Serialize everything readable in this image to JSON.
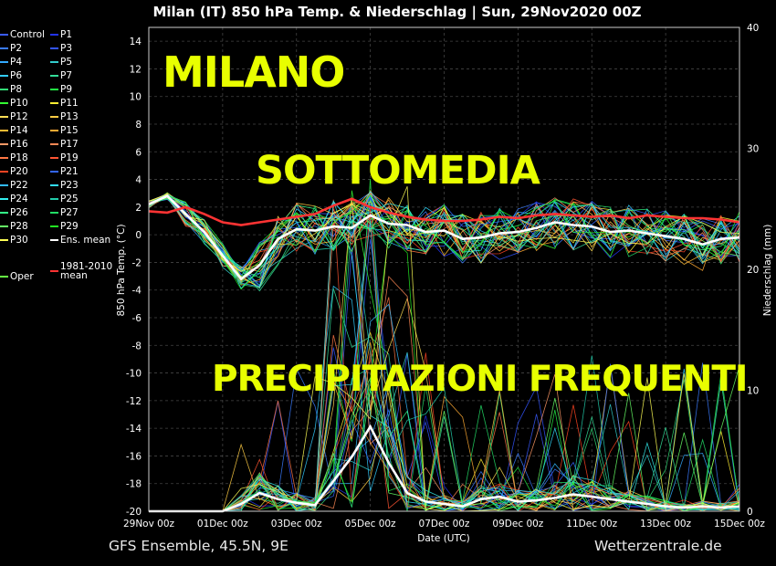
{
  "title": "Milan  (IT)  850 hPa Temp. & Niederschlag | Sun, 29Nov2020 00Z",
  "footer": {
    "left": "GFS Ensemble, 45.5N, 9E",
    "right": "Wetterzentrale.de"
  },
  "overlay": {
    "line1": "MILANO",
    "line2": "SOTTOMEDIA",
    "line3": "PRECIPITAZIONI FREQUENTI"
  },
  "legend": [
    {
      "label": "Control",
      "color": "#3a5bff"
    },
    {
      "label": "P1",
      "color": "#2233ee"
    },
    {
      "label": "P2",
      "color": "#3a7bff"
    },
    {
      "label": "P3",
      "color": "#3355ff"
    },
    {
      "label": "P4",
      "color": "#33aaff"
    },
    {
      "label": "P5",
      "color": "#33cccc"
    },
    {
      "label": "P6",
      "color": "#33ccff"
    },
    {
      "label": "P7",
      "color": "#33dd99"
    },
    {
      "label": "P8",
      "color": "#33dd77"
    },
    {
      "label": "P9",
      "color": "#22ee44"
    },
    {
      "label": "P10",
      "color": "#33ff33"
    },
    {
      "label": "P11",
      "color": "#ffee33"
    },
    {
      "label": "P12",
      "color": "#ffdd55"
    },
    {
      "label": "P13",
      "color": "#ffcc44"
    },
    {
      "label": "P14",
      "color": "#ffbb33"
    },
    {
      "label": "P15",
      "color": "#ffaa33"
    },
    {
      "label": "P16",
      "color": "#ff9966"
    },
    {
      "label": "P17",
      "color": "#ff8855"
    },
    {
      "label": "P18",
      "color": "#ff7744"
    },
    {
      "label": "P19",
      "color": "#ff5533"
    },
    {
      "label": "P20",
      "color": "#ff4422"
    },
    {
      "label": "P21",
      "color": "#3366ff"
    },
    {
      "label": "P22",
      "color": "#33bbff"
    },
    {
      "label": "P23",
      "color": "#33ddff"
    },
    {
      "label": "P24",
      "color": "#33eeee"
    },
    {
      "label": "P25",
      "color": "#22ccaa"
    },
    {
      "label": "P26",
      "color": "#33ff88"
    },
    {
      "label": "P27",
      "color": "#22dd66"
    },
    {
      "label": "P28",
      "color": "#66ff66"
    },
    {
      "label": "P29",
      "color": "#22ee22"
    },
    {
      "label": "P30",
      "color": "#ffff55"
    },
    {
      "label": "Ens. mean",
      "color": "#ffffff"
    },
    {
      "label": "Oper",
      "color": "#66ff44"
    },
    {
      "label": "1981-2010\nmean",
      "color": "#ff3333"
    }
  ],
  "chart_data": {
    "type": "line",
    "title": "Milan  (IT)  850 hPa Temp. & Niederschlag | Sun, 29Nov2020 00Z",
    "xlabel": "Date (UTC)",
    "ylabel": "850 hPa Temp. (°C)",
    "y2label": "Niederschlag (mm)",
    "ylim": [
      -20,
      15
    ],
    "y2lim": [
      0,
      40
    ],
    "yticks": [
      -20,
      -18,
      -16,
      -14,
      -12,
      -10,
      -8,
      -6,
      -4,
      -2,
      0,
      2,
      4,
      6,
      8,
      10,
      12,
      14
    ],
    "y2ticks": [
      0,
      10,
      20,
      30,
      40
    ],
    "xticks": [
      "29Nov 00z",
      "01Dec 00z",
      "03Dec 00z",
      "05Dec 00z",
      "07Dec 00z",
      "09Dec 00z",
      "11Dec 00z",
      "13Dec 00z",
      "15Dec 00z"
    ],
    "x_days": [
      0,
      16
    ],
    "grid": true,
    "series": [
      {
        "name": "Ens. mean",
        "axis": "temp",
        "color": "#ffffff",
        "x": [
          0,
          0.5,
          1,
          1.5,
          2,
          2.5,
          3,
          3.5,
          4,
          4.5,
          5,
          5.5,
          6,
          6.5,
          7,
          7.5,
          8,
          8.5,
          9,
          9.5,
          10,
          10.5,
          11,
          11.5,
          12,
          12.5,
          13,
          13.5,
          14,
          14.5,
          15,
          15.5,
          16
        ],
        "y": [
          2.2,
          2.8,
          1.5,
          0.2,
          -1.5,
          -3.2,
          -2.2,
          -0.3,
          0.4,
          0.3,
          0.6,
          0.5,
          1.4,
          0.8,
          0.7,
          0.2,
          0.3,
          -0.3,
          -0.2,
          0.1,
          0.2,
          0.5,
          0.9,
          0.7,
          0.6,
          0.2,
          0.3,
          0.1,
          -0.1,
          -0.3,
          -0.7,
          -0.3,
          -0.2
        ]
      },
      {
        "name": "1981-2010\nmean",
        "axis": "temp",
        "color": "#ff3333",
        "x": [
          0,
          0.5,
          1,
          1.5,
          2,
          2.5,
          3,
          3.5,
          4,
          4.5,
          5,
          5.5,
          6,
          6.5,
          7,
          7.5,
          8,
          8.5,
          9,
          9.5,
          10,
          10.5,
          11,
          11.5,
          12,
          12.5,
          13,
          13.5,
          14,
          14.5,
          15,
          15.5,
          16
        ],
        "y": [
          1.7,
          1.6,
          2.0,
          1.5,
          0.9,
          0.7,
          0.9,
          1.1,
          1.3,
          1.5,
          2.1,
          2.6,
          2.0,
          1.6,
          1.3,
          1.1,
          1.0,
          1.0,
          1.1,
          1.3,
          1.2,
          1.4,
          1.5,
          1.4,
          1.3,
          1.4,
          1.2,
          1.4,
          1.3,
          1.2,
          1.2,
          1.1,
          0.9
        ]
      },
      {
        "name": "Ens. mean",
        "axis": "precip",
        "color": "#ffffff",
        "x": [
          0,
          0.5,
          1,
          1.5,
          2,
          2.5,
          3,
          3.5,
          4,
          4.5,
          5,
          5.5,
          6,
          6.5,
          7,
          7.5,
          8,
          8.5,
          9,
          9.5,
          10,
          10.5,
          11,
          11.5,
          12,
          12.5,
          13,
          13.5,
          14,
          14.5,
          15,
          15.5,
          16
        ],
        "y": [
          0,
          0,
          0,
          0,
          0,
          0.6,
          1.5,
          1.0,
          0.7,
          0.5,
          2.5,
          4.5,
          7.0,
          4.0,
          1.5,
          0.8,
          0.6,
          0.4,
          1.0,
          1.2,
          0.8,
          0.9,
          1.1,
          1.4,
          1.2,
          1.0,
          0.8,
          0.6,
          0.4,
          0.3,
          0.4,
          0.3,
          0.4
        ]
      }
    ]
  }
}
